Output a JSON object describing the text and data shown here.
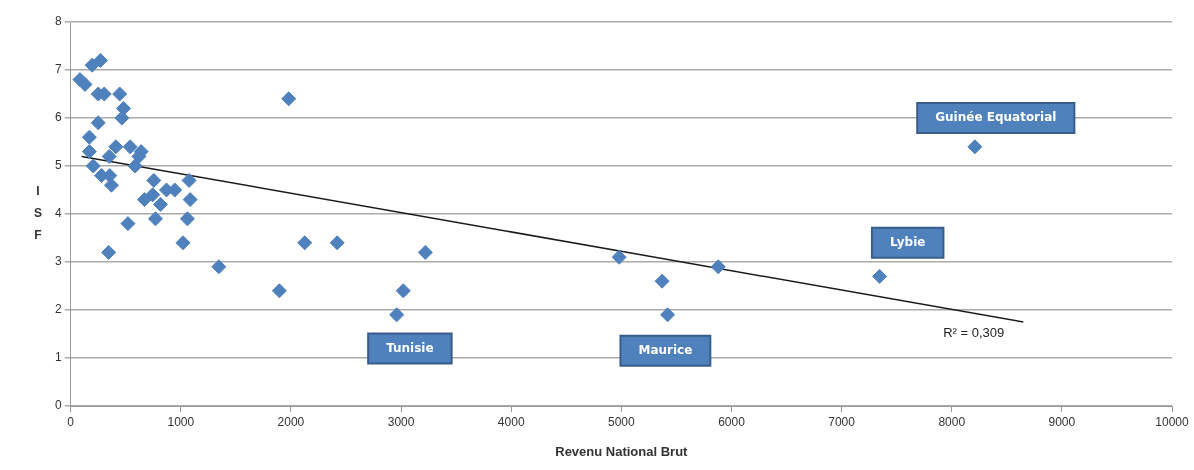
{
  "chart_data": {
    "type": "scatter",
    "xlabel": "Revenu National Brut",
    "ylabel": "I S F",
    "xlim": [
      0,
      10000
    ],
    "xticks": [
      0,
      1000,
      2000,
      3000,
      4000,
      5000,
      6000,
      7000,
      8000,
      9000,
      10000
    ],
    "ylim": [
      0,
      8
    ],
    "yticks": [
      0,
      1,
      2,
      3,
      4,
      5,
      6,
      7,
      8
    ],
    "grid": "y",
    "legend": false,
    "series": [
      {
        "color": "#4f81bd",
        "marker": "diamond",
        "x": [
          84,
          130,
          195,
          270,
          250,
          305,
          445,
          250,
          480,
          465,
          170,
          170,
          205,
          410,
          350,
          540,
          640,
          620,
          585,
          280,
          325,
          335,
          370,
          355,
          520,
          345,
          670,
          745,
          755,
          770,
          815,
          870,
          945,
          1075,
          1085,
          1060,
          1020,
          1345,
          1895,
          1980,
          2125,
          2420,
          3220,
          3020,
          2960,
          4980,
          5370,
          5420,
          5880,
          7345,
          8210
        ],
        "values": [
          6.8,
          6.7,
          7.1,
          7.2,
          6.5,
          6.5,
          6.5,
          5.9,
          6.2,
          6.0,
          5.6,
          5.3,
          5.0,
          5.4,
          5.2,
          5.4,
          5.3,
          5.2,
          5.0,
          4.8,
          null,
          null,
          4.6,
          4.8,
          3.8,
          3.2,
          4.3,
          4.4,
          4.7,
          3.9,
          4.2,
          4.5,
          4.5,
          4.7,
          4.3,
          3.9,
          3.4,
          2.9,
          2.4,
          6.4,
          3.4,
          3.4,
          3.2,
          2.4,
          1.9,
          3.1,
          2.6,
          1.9,
          2.9,
          2.7,
          5.4
        ]
      },
      {
        "type": "line",
        "color": "#1a1a1a",
        "marker": "none",
        "x": [
          100,
          8650
        ],
        "values": [
          5.2,
          1.75
        ]
      }
    ],
    "annotations": [
      "Tunisie",
      "Maurice",
      "Lybie",
      "Guinée Equatorial",
      "R² = 0,309"
    ]
  }
}
